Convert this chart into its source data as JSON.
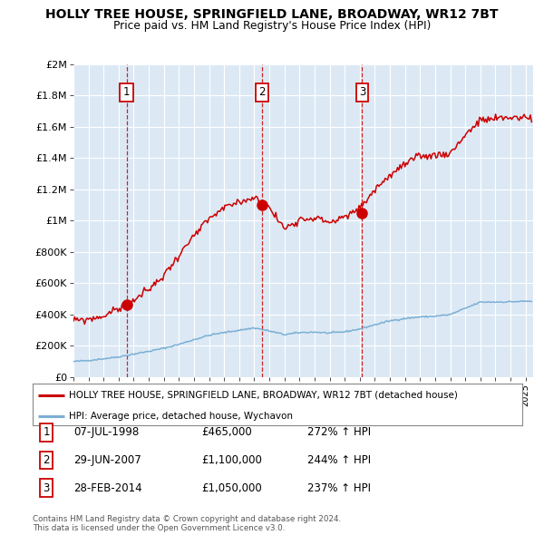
{
  "title": "HOLLY TREE HOUSE, SPRINGFIELD LANE, BROADWAY, WR12 7BT",
  "subtitle": "Price paid vs. HM Land Registry's House Price Index (HPI)",
  "background_color": "#dce9f5",
  "plot_bg_color": "#dce9f5",
  "ylim": [
    0,
    2000000
  ],
  "yticks": [
    0,
    200000,
    400000,
    600000,
    800000,
    1000000,
    1200000,
    1400000,
    1600000,
    1800000,
    2000000
  ],
  "ytick_labels": [
    "£0",
    "£200K",
    "£400K",
    "£600K",
    "£800K",
    "£1M",
    "£1.2M",
    "£1.4M",
    "£1.6M",
    "£1.8M",
    "£2M"
  ],
  "xlim_start": 1995.0,
  "xlim_end": 2025.5,
  "sale_dates": [
    1998.52,
    2007.49,
    2014.16
  ],
  "sale_prices": [
    465000,
    1100000,
    1050000
  ],
  "sale_labels": [
    "1",
    "2",
    "3"
  ],
  "legend_house_label": "HOLLY TREE HOUSE, SPRINGFIELD LANE, BROADWAY, WR12 7BT (detached house)",
  "legend_hpi_label": "HPI: Average price, detached house, Wychavon",
  "table_rows": [
    [
      "1",
      "07-JUL-1998",
      "£465,000",
      "272% ↑ HPI"
    ],
    [
      "2",
      "29-JUN-2007",
      "£1,100,000",
      "244% ↑ HPI"
    ],
    [
      "3",
      "28-FEB-2014",
      "£1,050,000",
      "237% ↑ HPI"
    ]
  ],
  "footnote": "Contains HM Land Registry data © Crown copyright and database right 2024.\nThis data is licensed under the Open Government Licence v3.0.",
  "house_color": "#cc0000",
  "hpi_color": "#7bafd4",
  "dashed_line_color": "#cc0000",
  "hpi_base": [
    100000,
    107000,
    118000,
    130000,
    148000,
    165000,
    185000,
    210000,
    240000,
    268000,
    285000,
    300000,
    315000,
    295000,
    272000,
    285000,
    288000,
    282000,
    290000,
    308000,
    335000,
    360000,
    375000,
    385000,
    390000,
    400000,
    440000,
    480000,
    480000,
    482000,
    485000
  ],
  "house_base": [
    360000,
    370000,
    390000,
    440000,
    490000,
    560000,
    650000,
    780000,
    900000,
    1010000,
    1080000,
    1120000,
    1150000,
    1080000,
    950000,
    1010000,
    1020000,
    990000,
    1020000,
    1080000,
    1200000,
    1290000,
    1360000,
    1410000,
    1420000,
    1430000,
    1550000,
    1640000,
    1650000,
    1660000,
    1660000
  ]
}
